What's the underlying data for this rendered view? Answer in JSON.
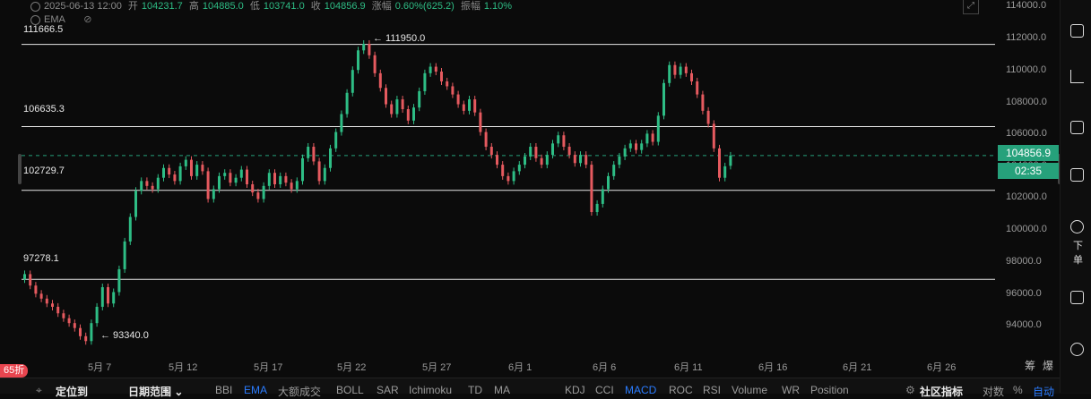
{
  "info_bar": {
    "time": "2025-06-13 12:00",
    "open_label": "开",
    "open": "104231.7",
    "high_label": "高",
    "high": "104885.0",
    "low_label": "低",
    "low": "103741.0",
    "close_label": "收",
    "close": "104856.9",
    "change_label": "涨幅",
    "change": "0.60%(625.2)",
    "amplitude_label": "振幅",
    "amplitude": "1.10%"
  },
  "indicator_row": {
    "name": "EMA"
  },
  "levels": [
    {
      "label": "111666.5",
      "price": 111666.5
    },
    {
      "label": "106635.3",
      "price": 106635.3
    },
    {
      "label": "102729.7",
      "price": 102729.7
    },
    {
      "label": "97278.1",
      "price": 97278.1
    }
  ],
  "extremes": {
    "high_label": "← 111950.0",
    "low_label": "← 93340.0"
  },
  "current": {
    "price": "104856.9",
    "countdown": "02:35",
    "color": "#26a17b"
  },
  "y_axis": {
    "ticks": [
      "114000.0",
      "112000.0",
      "110000.0",
      "108000.0",
      "106000.0",
      "104000.0",
      "102000.0",
      "100000.0",
      "98000.0",
      "96000.0",
      "94000.0"
    ],
    "min": 92200,
    "max": 114000
  },
  "x_axis": {
    "ticks": [
      "5月 7",
      "5月 12",
      "5月 17",
      "5月 22",
      "5月 27",
      "6月 1",
      "6月 6",
      "6月 11",
      "6月 16",
      "6月 21",
      "6月 26"
    ]
  },
  "corner": {
    "a": "筹",
    "b": "爆"
  },
  "promo": "65折",
  "toolbar": {
    "items": [
      "定位到",
      "日期范围 ⌄",
      "BBI",
      "EMA",
      "大额成交",
      "BOLL",
      "SAR",
      "Ichimoku",
      "TD",
      "MA",
      "KDJ",
      "CCI",
      "MACD",
      "ROC",
      "RSI",
      "Volume",
      "WR",
      "Position",
      "社区指标",
      "对数",
      "%",
      "自动"
    ]
  },
  "right_panel": {
    "label": "下单"
  },
  "colors": {
    "up": "#2ebd85",
    "down": "#e55a5f",
    "accent": "#2b7cff"
  },
  "chart_data": {
    "type": "candlestick",
    "title": "",
    "xlabel": "",
    "ylabel": "",
    "ylim": [
      92200,
      114000
    ],
    "series": [
      {
        "values": [
          [
            97278,
            97600
          ],
          [
            97600,
            96900
          ],
          [
            96900,
            96400
          ],
          [
            96400,
            96100
          ],
          [
            96100,
            95800
          ],
          [
            95800,
            95600
          ],
          [
            95600,
            95200
          ],
          [
            95200,
            94900
          ],
          [
            94900,
            94600
          ],
          [
            94600,
            94300
          ],
          [
            94300,
            93800
          ],
          [
            93800,
            93500
          ],
          [
            93500,
            94600
          ],
          [
            94600,
            95600
          ],
          [
            95600,
            96800
          ],
          [
            96800,
            95800
          ],
          [
            95800,
            96500
          ],
          [
            96500,
            97900
          ],
          [
            97900,
            99600
          ],
          [
            99600,
            101100
          ],
          [
            101100,
            102700
          ],
          [
            102700,
            103300
          ],
          [
            103300,
            103000
          ],
          [
            103000,
            102800
          ],
          [
            102800,
            103500
          ],
          [
            103500,
            104100
          ],
          [
            104100,
            103700
          ],
          [
            103700,
            103300
          ],
          [
            103300,
            104200
          ],
          [
            104200,
            104600
          ],
          [
            104600,
            103600
          ],
          [
            103600,
            104300
          ],
          [
            104300,
            103900
          ],
          [
            103900,
            102200
          ],
          [
            102200,
            102800
          ],
          [
            102800,
            103600
          ],
          [
            103600,
            103800
          ],
          [
            103800,
            103200
          ],
          [
            103200,
            103500
          ],
          [
            103500,
            104000
          ],
          [
            104000,
            103100
          ],
          [
            103100,
            102600
          ],
          [
            102600,
            102200
          ],
          [
            102200,
            103000
          ],
          [
            103000,
            103800
          ],
          [
            103800,
            103100
          ],
          [
            103100,
            103600
          ],
          [
            103600,
            103200
          ],
          [
            103200,
            102800
          ],
          [
            102800,
            103300
          ],
          [
            103300,
            104700
          ],
          [
            104700,
            105400
          ],
          [
            105400,
            104500
          ],
          [
            104500,
            103300
          ],
          [
            103300,
            104100
          ],
          [
            104100,
            105300
          ],
          [
            105300,
            106300
          ],
          [
            106300,
            107400
          ],
          [
            107400,
            108700
          ],
          [
            108700,
            110100
          ],
          [
            110100,
            111300
          ],
          [
            111300,
            111700
          ],
          [
            111700,
            111000
          ],
          [
            111000,
            109900
          ],
          [
            109900,
            109000
          ],
          [
            109000,
            108000
          ],
          [
            108000,
            107400
          ],
          [
            107400,
            108300
          ],
          [
            108300,
            107700
          ],
          [
            107700,
            107000
          ],
          [
            107000,
            107800
          ],
          [
            107800,
            108800
          ],
          [
            108800,
            109900
          ],
          [
            109900,
            110300
          ],
          [
            110300,
            110000
          ],
          [
            110000,
            109400
          ],
          [
            109400,
            109100
          ],
          [
            109100,
            108600
          ],
          [
            108600,
            108000
          ],
          [
            108000,
            107600
          ],
          [
            107600,
            108300
          ],
          [
            108300,
            107500
          ],
          [
            107500,
            106300
          ],
          [
            106300,
            105400
          ],
          [
            105400,
            104900
          ],
          [
            104900,
            104300
          ],
          [
            104300,
            103600
          ],
          [
            103600,
            103300
          ],
          [
            103300,
            103900
          ],
          [
            103900,
            104300
          ],
          [
            104300,
            104800
          ],
          [
            104800,
            105400
          ],
          [
            105400,
            104700
          ],
          [
            104700,
            104300
          ],
          [
            104300,
            104900
          ],
          [
            104900,
            105600
          ],
          [
            105600,
            106100
          ],
          [
            106100,
            105400
          ],
          [
            105400,
            104900
          ],
          [
            104900,
            104400
          ],
          [
            104400,
            104900
          ],
          [
            104900,
            104300
          ],
          [
            104300,
            101400
          ],
          [
            101400,
            101900
          ],
          [
            101900,
            102800
          ],
          [
            102800,
            103600
          ],
          [
            103600,
            104300
          ],
          [
            104300,
            104800
          ],
          [
            104800,
            105300
          ],
          [
            105300,
            105600
          ],
          [
            105600,
            105200
          ],
          [
            105200,
            105600
          ],
          [
            105600,
            106200
          ],
          [
            106200,
            105700
          ],
          [
            105700,
            107300
          ],
          [
            107300,
            109300
          ],
          [
            109300,
            110400
          ],
          [
            110400,
            109800
          ],
          [
            109800,
            110300
          ],
          [
            110300,
            109900
          ],
          [
            109900,
            109400
          ],
          [
            109400,
            108600
          ],
          [
            108600,
            107600
          ],
          [
            107600,
            106800
          ],
          [
            106800,
            105300
          ],
          [
            105300,
            103500
          ],
          [
            103500,
            104200
          ],
          [
            104231.7,
            104856.9
          ]
        ]
      }
    ]
  }
}
